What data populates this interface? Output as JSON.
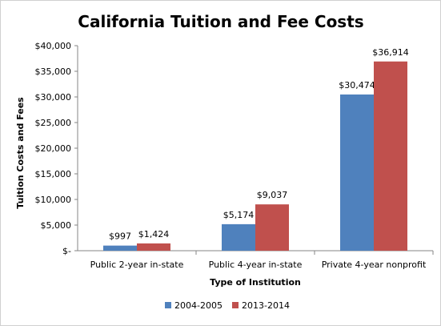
{
  "chart_data": {
    "type": "bar",
    "title": "California Tuition and Fee Costs",
    "xlabel": "Type of Institution",
    "ylabel": "Tuition Costs and Fees",
    "categories": [
      "Public 2-year in-state",
      "Public 4-year in-state",
      "Private 4-year nonprofit"
    ],
    "series": [
      {
        "name": "2004-2005",
        "values": [
          997,
          5174,
          30474
        ],
        "labels": [
          "$997",
          "$5,174",
          "$30,474"
        ],
        "color": "#4f81bd"
      },
      {
        "name": "2013-2014",
        "values": [
          1424,
          9037,
          36914
        ],
        "labels": [
          "$1,424",
          "$9,037",
          "$36,914"
        ],
        "color": "#c0504d"
      }
    ],
    "ylim": [
      0,
      40000
    ],
    "yticks": [
      0,
      5000,
      10000,
      15000,
      20000,
      25000,
      30000,
      35000,
      40000
    ],
    "ytick_labels": [
      "$-",
      "$5,000",
      "$10,000",
      "$15,000",
      "$20,000",
      "$25,000",
      "$30,000",
      "$35,000",
      "$40,000"
    ],
    "grid": false,
    "legend_position": "bottom"
  }
}
